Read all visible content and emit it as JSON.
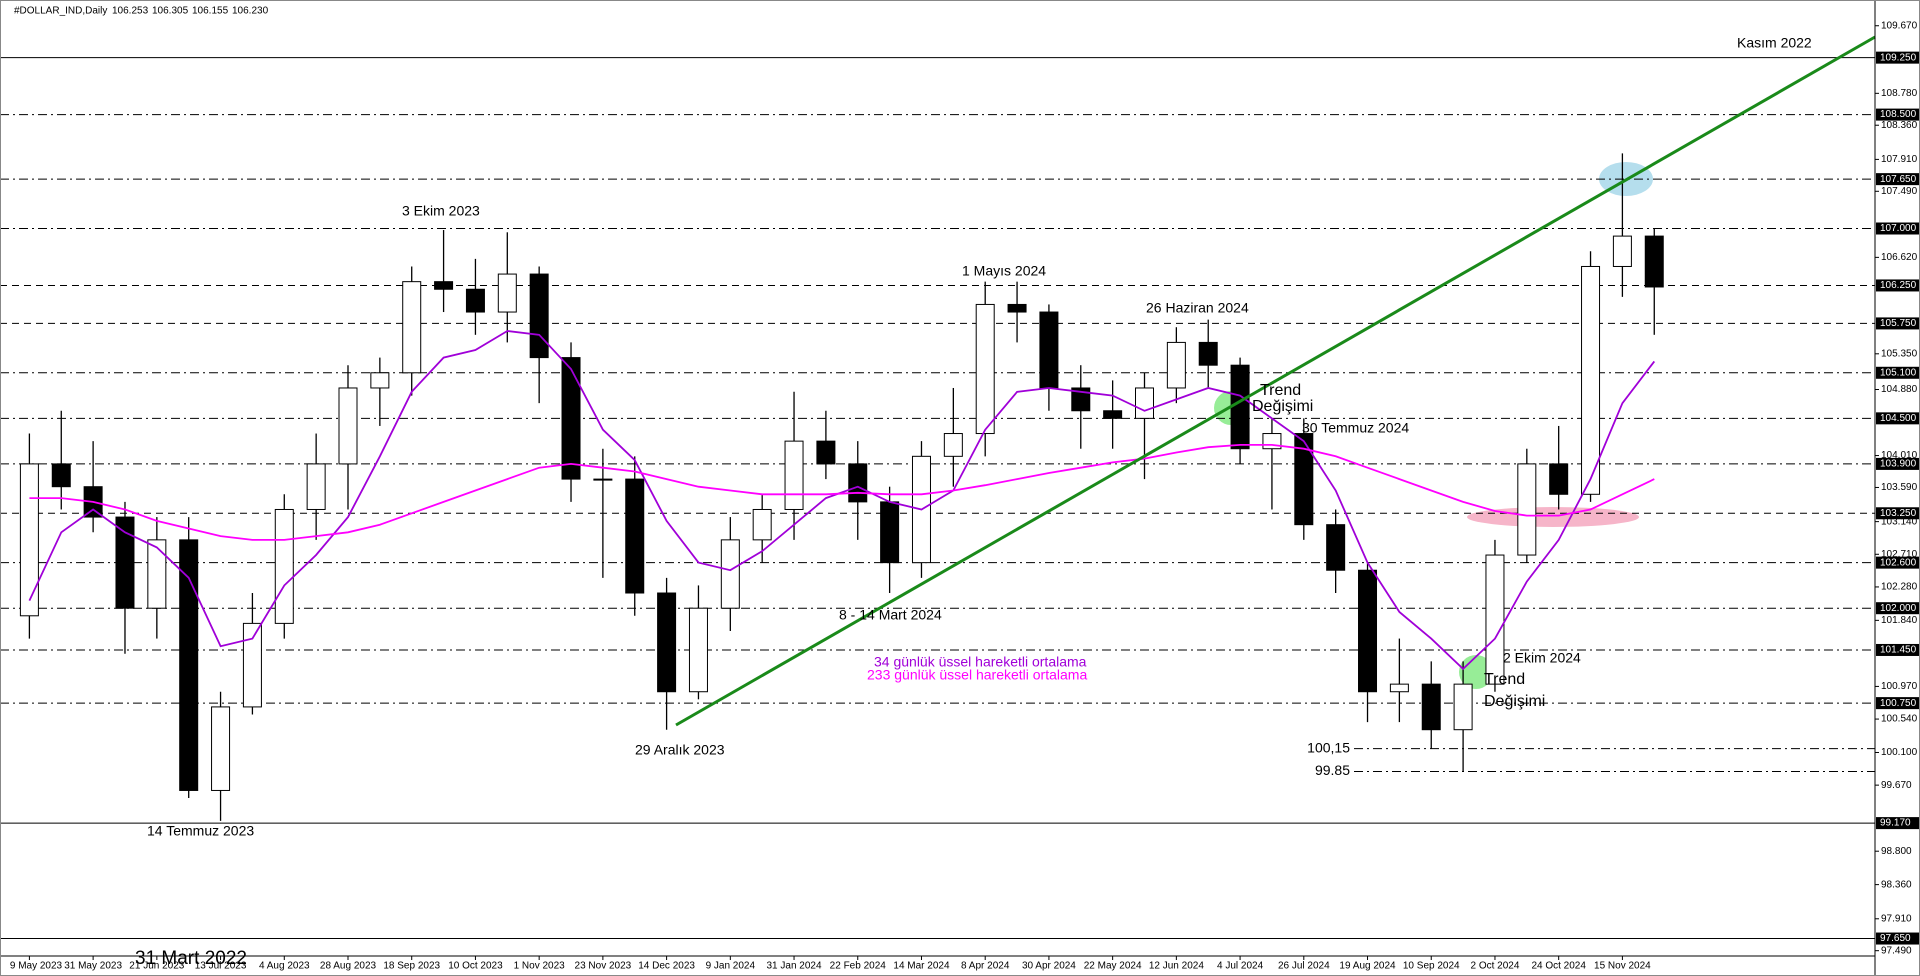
{
  "chart_data": {
    "type": "candlestick",
    "title": "#DOLLAR_IND,Daily",
    "ohlc_text": [
      "106.253",
      "106.305",
      "106.155",
      "106.230"
    ],
    "ylim": [
      97.42,
      109.93
    ],
    "yticks": [
      {
        "value": 109.67,
        "label": "109.670"
      },
      {
        "value": 108.78,
        "label": "108.780"
      },
      {
        "value": 108.36,
        "label": "108.360"
      },
      {
        "value": 107.91,
        "label": "107.910"
      },
      {
        "value": 107.49,
        "label": "107.490"
      },
      {
        "value": 106.62,
        "label": "106.620"
      },
      {
        "value": 105.35,
        "label": "105.350"
      },
      {
        "value": 104.88,
        "label": "104.880"
      },
      {
        "value": 104.01,
        "label": "104.010"
      },
      {
        "value": 103.59,
        "label": "103.590"
      },
      {
        "value": 103.14,
        "label": "103.140"
      },
      {
        "value": 102.71,
        "label": "102.710"
      },
      {
        "value": 102.28,
        "label": "102.280"
      },
      {
        "value": 101.84,
        "label": "101.840"
      },
      {
        "value": 100.97,
        "label": "100.970"
      },
      {
        "value": 100.54,
        "label": "100.540"
      },
      {
        "value": 100.1,
        "label": "100.100"
      },
      {
        "value": 99.67,
        "label": "99.670"
      },
      {
        "value": 98.8,
        "label": "98.800"
      },
      {
        "value": 98.36,
        "label": "98.360"
      },
      {
        "value": 97.91,
        "label": "97.910"
      },
      {
        "value": 97.49,
        "label": "97.490"
      }
    ],
    "levels": [
      {
        "value": 109.25,
        "label": "109.250",
        "style": "solid"
      },
      {
        "value": 108.5,
        "label": "108.500",
        "style": "dashdot"
      },
      {
        "value": 107.65,
        "label": "107.650",
        "style": "dashdot"
      },
      {
        "value": 107.0,
        "label": "107.000",
        "style": "dashdot"
      },
      {
        "value": 106.25,
        "label": "106.250",
        "style": "dashed"
      },
      {
        "value": 105.75,
        "label": "105.750",
        "style": "dashed"
      },
      {
        "value": 105.1,
        "label": "105.100",
        "style": "dashdot"
      },
      {
        "value": 104.5,
        "label": "104.500",
        "style": "dashdot"
      },
      {
        "value": 103.9,
        "label": "103.900",
        "style": "dashdot"
      },
      {
        "value": 103.25,
        "label": "103.250",
        "style": "dashed"
      },
      {
        "value": 102.6,
        "label": "102.600",
        "style": "dashdot"
      },
      {
        "value": 102.0,
        "label": "102.000",
        "style": "dashdot"
      },
      {
        "value": 101.45,
        "label": "101.450",
        "style": "dashdot"
      },
      {
        "value": 100.75,
        "label": "100.750",
        "style": "dashdot"
      },
      {
        "value": 99.17,
        "label": "99.170",
        "style": "solid"
      },
      {
        "value": 97.65,
        "label": "97.650",
        "style": "solid"
      }
    ],
    "short_levels": [
      {
        "value": 100.15,
        "label": "100,15"
      },
      {
        "value": 99.85,
        "label": "99.85"
      }
    ],
    "categories": [
      "9 May 2023",
      null,
      "31 May 2023",
      null,
      "21 Jun 2023",
      null,
      "13 Jul 2023",
      null,
      "4 Aug 2023",
      null,
      "28 Aug 2023",
      null,
      "18 Sep 2023",
      null,
      "10 Oct 2023",
      null,
      "1 Nov 2023",
      null,
      "23 Nov 2023",
      null,
      "14 Dec 2023",
      null,
      "9 Jan 2024",
      null,
      "31 Jan 2024",
      null,
      "22 Feb 2024",
      null,
      "14 Mar 2024",
      null,
      "8 Apr 2024",
      null,
      "30 Apr 2024",
      null,
      "22 May 2024",
      null,
      "12 Jun 2024",
      null,
      "4 Jul 2024",
      null,
      "26 Jul 2024",
      null,
      "19 Aug 2024",
      null,
      "10 Sep 2024",
      null,
      "2 Oct 2024",
      null,
      "24 Oct 2024",
      null,
      "15 Nov 2024",
      null
    ],
    "candles": {
      "color": "#000000",
      "open": [
        101.9,
        103.9,
        103.6,
        103.2,
        102.0,
        102.9,
        99.6,
        100.7,
        101.8,
        103.3,
        103.9,
        104.9,
        105.1,
        106.3,
        106.2,
        105.9,
        106.4,
        105.3,
        103.7,
        103.7,
        102.2,
        100.9,
        102.0,
        102.9,
        103.3,
        104.2,
        103.9,
        103.4,
        102.6,
        104.0,
        104.3,
        106.0,
        105.9,
        104.9,
        104.6,
        104.5,
        104.9,
        105.5,
        105.2,
        104.1,
        104.3,
        103.1,
        102.5,
        100.9,
        101.0,
        100.4,
        101.0,
        102.7,
        103.9,
        103.5,
        106.5,
        106.9
      ],
      "high": [
        104.3,
        104.6,
        104.2,
        103.4,
        103.2,
        103.2,
        100.9,
        102.2,
        103.5,
        104.3,
        105.2,
        105.3,
        106.5,
        106.98,
        106.6,
        106.95,
        106.5,
        105.5,
        104.1,
        104.0,
        102.4,
        102.3,
        103.2,
        103.5,
        104.85,
        104.6,
        104.2,
        103.6,
        104.2,
        104.9,
        106.3,
        106.3,
        106.0,
        105.2,
        105.0,
        105.1,
        105.7,
        105.8,
        105.3,
        104.5,
        104.5,
        103.3,
        102.6,
        101.6,
        101.3,
        101.3,
        102.9,
        104.1,
        104.4,
        106.7,
        107.99,
        107.0
      ],
      "low": [
        101.6,
        103.3,
        103.0,
        101.4,
        101.6,
        99.5,
        99.2,
        100.6,
        101.6,
        102.9,
        103.3,
        104.4,
        104.8,
        105.9,
        105.6,
        105.5,
        104.7,
        103.4,
        102.4,
        101.9,
        100.4,
        100.8,
        101.7,
        102.6,
        102.9,
        103.7,
        102.9,
        102.2,
        102.4,
        103.6,
        104.0,
        105.5,
        104.6,
        104.1,
        104.1,
        103.7,
        104.7,
        104.9,
        103.9,
        103.3,
        102.9,
        102.2,
        100.5,
        100.5,
        100.15,
        99.85,
        100.9,
        102.6,
        103.3,
        103.4,
        106.1,
        105.6
      ],
      "close": [
        103.9,
        103.6,
        103.2,
        102.0,
        102.9,
        99.6,
        100.7,
        101.8,
        103.3,
        103.9,
        104.9,
        105.1,
        106.3,
        106.2,
        105.9,
        106.4,
        105.3,
        103.7,
        103.7,
        102.2,
        100.9,
        102.0,
        102.9,
        103.3,
        104.2,
        103.9,
        103.4,
        102.6,
        104.0,
        104.3,
        106.0,
        105.9,
        104.9,
        104.6,
        104.5,
        104.9,
        105.5,
        105.2,
        104.1,
        104.3,
        103.1,
        102.5,
        100.9,
        101.0,
        100.4,
        101.0,
        102.7,
        103.9,
        103.5,
        106.5,
        106.9,
        106.23
      ]
    },
    "series": [
      {
        "name": "34 günlük üssel hareketli ortalama",
        "color": "#a000d8",
        "values": [
          102.1,
          103.0,
          103.3,
          103.0,
          102.8,
          102.4,
          101.5,
          101.6,
          102.3,
          102.7,
          103.2,
          104.0,
          104.85,
          105.3,
          105.4,
          105.65,
          105.6,
          105.15,
          104.35,
          103.95,
          103.15,
          102.6,
          102.5,
          102.75,
          103.1,
          103.45,
          103.6,
          103.4,
          103.3,
          103.55,
          104.35,
          104.85,
          104.9,
          104.85,
          104.8,
          104.6,
          104.75,
          104.9,
          104.8,
          104.5,
          104.2,
          103.55,
          102.6,
          101.95,
          101.6,
          101.2,
          101.6,
          102.35,
          102.9,
          103.7,
          104.7,
          105.25
        ]
      },
      {
        "name": "233 günlük üssel hareketli ortalama",
        "color": "#ff00ff",
        "values": [
          103.45,
          103.45,
          103.4,
          103.3,
          103.15,
          103.05,
          102.95,
          102.9,
          102.9,
          102.95,
          103.0,
          103.1,
          103.25,
          103.4,
          103.55,
          103.7,
          103.85,
          103.9,
          103.85,
          103.8,
          103.7,
          103.6,
          103.55,
          103.5,
          103.5,
          103.5,
          103.52,
          103.5,
          103.5,
          103.55,
          103.62,
          103.7,
          103.78,
          103.85,
          103.92,
          103.97,
          104.05,
          104.12,
          104.15,
          104.15,
          104.1,
          104.0,
          103.85,
          103.7,
          103.55,
          103.4,
          103.28,
          103.22,
          103.22,
          103.3,
          103.5,
          103.7
        ]
      }
    ],
    "annotations": [
      {
        "text": "Kasım 2022"
      },
      {
        "text": "3 Ekim 2023"
      },
      {
        "text": "1 Mayıs 2024"
      },
      {
        "text": "26 Haziran 2024"
      },
      {
        "text": "Trend"
      },
      {
        "text": "Değişimi"
      },
      {
        "text": "30 Temmuz 2024"
      },
      {
        "text": "8 - 14 Mart 2024"
      },
      {
        "text": "29 Aralık 2023"
      },
      {
        "text": "2 Ekim 2024"
      },
      {
        "text": "Trend"
      },
      {
        "text": "Değişimi"
      },
      {
        "text": "14 Temmuz 2023"
      },
      {
        "text": "31 Mart 2022"
      }
    ]
  }
}
